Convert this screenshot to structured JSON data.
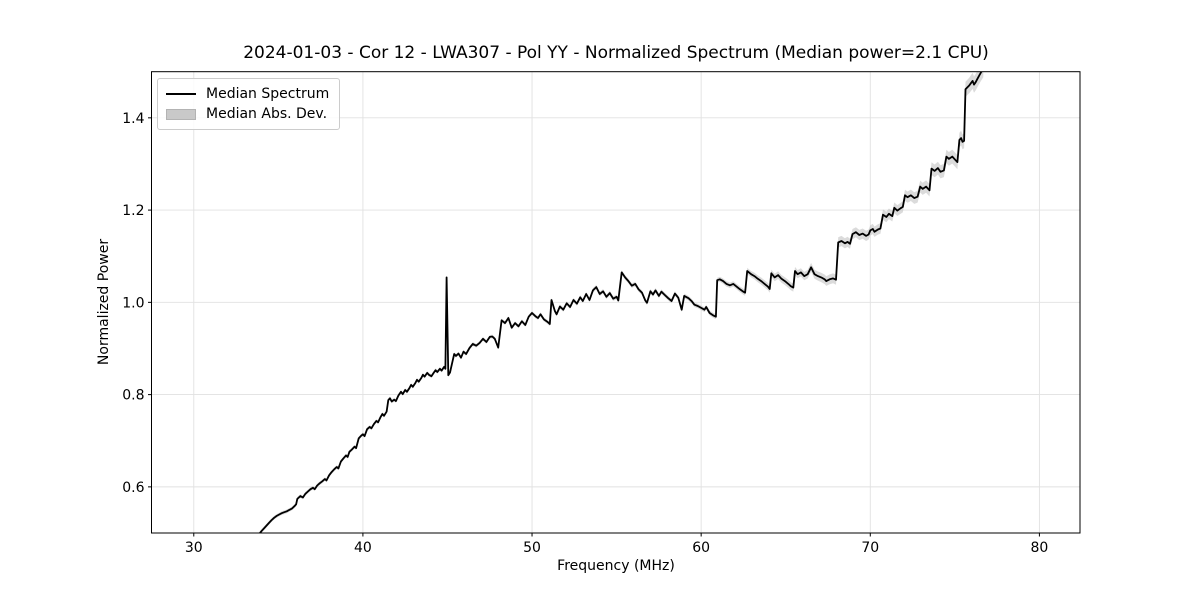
{
  "chart_data": {
    "type": "line",
    "title": "2024-01-03 - Cor 12 - LWA307 - Pol YY - Normalized Spectrum (Median power=2.1 CPU)",
    "xlabel": "Frequency (MHz)",
    "ylabel": "Normalized Power",
    "xlim": [
      27.5,
      82.4
    ],
    "ylim": [
      0.5,
      1.5
    ],
    "xticks": [
      30,
      40,
      50,
      60,
      70,
      80
    ],
    "yticks": [
      0.6,
      0.8,
      1.0,
      1.2,
      1.4
    ],
    "xtick_labels": [
      "30",
      "40",
      "50",
      "60",
      "70",
      "80"
    ],
    "ytick_labels": [
      "0.6",
      "0.8",
      "1.0",
      "1.2",
      "1.4"
    ],
    "grid": true,
    "legend": {
      "position": "upper-left",
      "entries": [
        {
          "label": "Median Spectrum",
          "type": "line",
          "color": "#000000"
        },
        {
          "label": "Median Abs. Dev.",
          "type": "patch",
          "color": "#c9c9c9"
        }
      ]
    },
    "colors": {
      "line": "#000000",
      "band": "#bdbdbd",
      "grid": "#e1e1e1",
      "spine": "#000000",
      "background": "#ffffff"
    },
    "series": [
      {
        "name": "Median Spectrum",
        "type": "line",
        "color": "#000000",
        "points": [
          [
            33.85,
            0.497
          ],
          [
            34.0,
            0.504
          ],
          [
            34.15,
            0.51
          ],
          [
            34.3,
            0.516
          ],
          [
            34.45,
            0.522
          ],
          [
            34.6,
            0.528
          ],
          [
            34.75,
            0.533
          ],
          [
            34.9,
            0.537
          ],
          [
            35.05,
            0.54
          ],
          [
            35.2,
            0.543
          ],
          [
            35.35,
            0.545
          ],
          [
            35.5,
            0.547
          ],
          [
            35.65,
            0.55
          ],
          [
            35.8,
            0.553
          ],
          [
            35.95,
            0.558
          ],
          [
            36.05,
            0.562
          ],
          [
            36.12,
            0.574
          ],
          [
            36.3,
            0.58
          ],
          [
            36.45,
            0.577
          ],
          [
            36.6,
            0.585
          ],
          [
            36.75,
            0.59
          ],
          [
            36.9,
            0.595
          ],
          [
            37.05,
            0.598
          ],
          [
            37.15,
            0.595
          ],
          [
            37.3,
            0.603
          ],
          [
            37.45,
            0.608
          ],
          [
            37.6,
            0.612
          ],
          [
            37.75,
            0.617
          ],
          [
            37.85,
            0.614
          ],
          [
            38.0,
            0.625
          ],
          [
            38.15,
            0.632
          ],
          [
            38.3,
            0.638
          ],
          [
            38.45,
            0.643
          ],
          [
            38.55,
            0.64
          ],
          [
            38.7,
            0.655
          ],
          [
            38.85,
            0.662
          ],
          [
            39.0,
            0.668
          ],
          [
            39.1,
            0.665
          ],
          [
            39.2,
            0.676
          ],
          [
            39.35,
            0.681
          ],
          [
            39.5,
            0.687
          ],
          [
            39.6,
            0.684
          ],
          [
            39.75,
            0.705
          ],
          [
            39.9,
            0.711
          ],
          [
            40.0,
            0.714
          ],
          [
            40.1,
            0.71
          ],
          [
            40.25,
            0.725
          ],
          [
            40.4,
            0.73
          ],
          [
            40.5,
            0.727
          ],
          [
            40.65,
            0.736
          ],
          [
            40.8,
            0.743
          ],
          [
            40.9,
            0.74
          ],
          [
            41.05,
            0.752
          ],
          [
            41.15,
            0.758
          ],
          [
            41.25,
            0.754
          ],
          [
            41.4,
            0.763
          ],
          [
            41.5,
            0.788
          ],
          [
            41.6,
            0.792
          ],
          [
            41.7,
            0.785
          ],
          [
            41.85,
            0.789
          ],
          [
            41.95,
            0.786
          ],
          [
            42.1,
            0.798
          ],
          [
            42.25,
            0.806
          ],
          [
            42.35,
            0.801
          ],
          [
            42.5,
            0.81
          ],
          [
            42.6,
            0.806
          ],
          [
            42.75,
            0.814
          ],
          [
            42.85,
            0.821
          ],
          [
            42.95,
            0.817
          ],
          [
            43.1,
            0.825
          ],
          [
            43.2,
            0.832
          ],
          [
            43.3,
            0.828
          ],
          [
            43.45,
            0.836
          ],
          [
            43.55,
            0.843
          ],
          [
            43.65,
            0.839
          ],
          [
            43.8,
            0.847
          ],
          [
            43.9,
            0.843
          ],
          [
            44.05,
            0.84
          ],
          [
            44.2,
            0.848
          ],
          [
            44.3,
            0.853
          ],
          [
            44.4,
            0.849
          ],
          [
            44.55,
            0.856
          ],
          [
            44.65,
            0.852
          ],
          [
            44.8,
            0.86
          ],
          [
            44.88,
            0.856
          ],
          [
            44.95,
            1.054
          ],
          [
            45.05,
            0.842
          ],
          [
            45.15,
            0.848
          ],
          [
            45.3,
            0.872
          ],
          [
            45.4,
            0.888
          ],
          [
            45.5,
            0.884
          ],
          [
            45.65,
            0.889
          ],
          [
            45.8,
            0.88
          ],
          [
            45.95,
            0.893
          ],
          [
            46.1,
            0.888
          ],
          [
            46.3,
            0.901
          ],
          [
            46.5,
            0.91
          ],
          [
            46.7,
            0.906
          ],
          [
            46.9,
            0.912
          ],
          [
            47.1,
            0.921
          ],
          [
            47.3,
            0.914
          ],
          [
            47.5,
            0.925
          ],
          [
            47.65,
            0.926
          ],
          [
            47.8,
            0.921
          ],
          [
            48.0,
            0.902
          ],
          [
            48.2,
            0.961
          ],
          [
            48.4,
            0.955
          ],
          [
            48.6,
            0.966
          ],
          [
            48.8,
            0.945
          ],
          [
            49.0,
            0.955
          ],
          [
            49.2,
            0.948
          ],
          [
            49.4,
            0.959
          ],
          [
            49.6,
            0.951
          ],
          [
            49.8,
            0.969
          ],
          [
            50.0,
            0.977
          ],
          [
            50.2,
            0.97
          ],
          [
            50.35,
            0.966
          ],
          [
            50.5,
            0.974
          ],
          [
            50.7,
            0.963
          ],
          [
            50.9,
            0.958
          ],
          [
            51.05,
            0.953
          ],
          [
            51.15,
            1.005
          ],
          [
            51.35,
            0.981
          ],
          [
            51.45,
            0.974
          ],
          [
            51.65,
            0.991
          ],
          [
            51.85,
            0.984
          ],
          [
            52.05,
            0.998
          ],
          [
            52.25,
            0.99
          ],
          [
            52.45,
            1.005
          ],
          [
            52.65,
            0.997
          ],
          [
            52.85,
            1.011
          ],
          [
            53.0,
            1.003
          ],
          [
            53.2,
            1.018
          ],
          [
            53.4,
            1.005
          ],
          [
            53.6,
            1.026
          ],
          [
            53.8,
            1.033
          ],
          [
            54.0,
            1.018
          ],
          [
            54.2,
            1.024
          ],
          [
            54.4,
            1.012
          ],
          [
            54.6,
            1.02
          ],
          [
            54.8,
            1.008
          ],
          [
            55.0,
            1.012
          ],
          [
            55.1,
            1.004
          ],
          [
            55.3,
            1.065
          ],
          [
            55.5,
            1.054
          ],
          [
            55.7,
            1.046
          ],
          [
            55.9,
            1.036
          ],
          [
            56.1,
            1.04
          ],
          [
            56.3,
            1.028
          ],
          [
            56.5,
            1.021
          ],
          [
            56.7,
            1.004
          ],
          [
            56.8,
            0.999
          ],
          [
            57.0,
            1.024
          ],
          [
            57.15,
            1.017
          ],
          [
            57.3,
            1.026
          ],
          [
            57.5,
            1.014
          ],
          [
            57.65,
            1.023
          ],
          [
            57.85,
            1.016
          ],
          [
            58.05,
            1.009
          ],
          [
            58.25,
            1.003
          ],
          [
            58.45,
            1.019
          ],
          [
            58.65,
            1.01
          ],
          [
            58.85,
            0.984
          ],
          [
            59.0,
            1.014
          ],
          [
            59.25,
            1.009
          ],
          [
            59.45,
            1.002
          ],
          [
            59.6,
            0.995
          ],
          [
            59.8,
            0.992
          ],
          [
            60.0,
            0.988
          ],
          [
            60.2,
            0.984
          ],
          [
            60.3,
            0.99
          ],
          [
            60.5,
            0.977
          ],
          [
            60.7,
            0.972
          ],
          [
            60.87,
            0.969
          ],
          [
            60.95,
            1.048
          ],
          [
            61.1,
            1.05
          ],
          [
            61.3,
            1.046
          ],
          [
            61.5,
            1.04
          ],
          [
            61.7,
            1.037
          ],
          [
            61.9,
            1.04
          ],
          [
            62.1,
            1.034
          ],
          [
            62.3,
            1.028
          ],
          [
            62.5,
            1.023
          ],
          [
            62.6,
            1.021
          ],
          [
            62.72,
            1.068
          ],
          [
            62.95,
            1.061
          ],
          [
            63.15,
            1.057
          ],
          [
            63.35,
            1.051
          ],
          [
            63.55,
            1.046
          ],
          [
            63.75,
            1.04
          ],
          [
            63.95,
            1.034
          ],
          [
            64.05,
            1.029
          ],
          [
            64.15,
            1.063
          ],
          [
            64.35,
            1.054
          ],
          [
            64.55,
            1.059
          ],
          [
            64.75,
            1.051
          ],
          [
            64.95,
            1.046
          ],
          [
            65.15,
            1.04
          ],
          [
            65.3,
            1.035
          ],
          [
            65.45,
            1.032
          ],
          [
            65.55,
            1.068
          ],
          [
            65.7,
            1.061
          ],
          [
            65.9,
            1.065
          ],
          [
            66.1,
            1.057
          ],
          [
            66.3,
            1.061
          ],
          [
            66.5,
            1.076
          ],
          [
            66.7,
            1.061
          ],
          [
            66.9,
            1.057
          ],
          [
            67.1,
            1.054
          ],
          [
            67.3,
            1.05
          ],
          [
            67.4,
            1.046
          ],
          [
            67.6,
            1.05
          ],
          [
            67.8,
            1.052
          ],
          [
            67.97,
            1.049
          ],
          [
            68.1,
            1.13
          ],
          [
            68.3,
            1.133
          ],
          [
            68.5,
            1.128
          ],
          [
            68.65,
            1.131
          ],
          [
            68.8,
            1.127
          ],
          [
            68.95,
            1.148
          ],
          [
            69.15,
            1.152
          ],
          [
            69.35,
            1.146
          ],
          [
            69.55,
            1.149
          ],
          [
            69.75,
            1.144
          ],
          [
            69.9,
            1.147
          ],
          [
            70.0,
            1.156
          ],
          [
            70.15,
            1.159
          ],
          [
            70.25,
            1.153
          ],
          [
            70.45,
            1.158
          ],
          [
            70.6,
            1.16
          ],
          [
            70.75,
            1.19
          ],
          [
            70.95,
            1.185
          ],
          [
            71.1,
            1.192
          ],
          [
            71.3,
            1.187
          ],
          [
            71.42,
            1.205
          ],
          [
            71.6,
            1.199
          ],
          [
            71.8,
            1.204
          ],
          [
            71.92,
            1.207
          ],
          [
            72.05,
            1.232
          ],
          [
            72.2,
            1.228
          ],
          [
            72.4,
            1.232
          ],
          [
            72.6,
            1.226
          ],
          [
            72.8,
            1.229
          ],
          [
            72.95,
            1.251
          ],
          [
            73.1,
            1.246
          ],
          [
            73.3,
            1.251
          ],
          [
            73.5,
            1.243
          ],
          [
            73.62,
            1.29
          ],
          [
            73.8,
            1.285
          ],
          [
            74.0,
            1.291
          ],
          [
            74.15,
            1.283
          ],
          [
            74.35,
            1.286
          ],
          [
            74.5,
            1.316
          ],
          [
            74.65,
            1.311
          ],
          [
            74.85,
            1.316
          ],
          [
            75.05,
            1.308
          ],
          [
            75.15,
            1.304
          ],
          [
            75.27,
            1.352
          ],
          [
            75.37,
            1.356
          ],
          [
            75.45,
            1.348
          ],
          [
            75.55,
            1.35
          ],
          [
            75.63,
            1.462
          ],
          [
            75.85,
            1.47
          ],
          [
            75.95,
            1.475
          ],
          [
            76.05,
            1.48
          ],
          [
            76.13,
            1.472
          ],
          [
            76.23,
            1.477
          ],
          [
            76.33,
            1.484
          ],
          [
            76.43,
            1.491
          ],
          [
            76.55,
            1.499
          ],
          [
            76.68,
            1.507
          ]
        ]
      },
      {
        "name": "Median Abs. Dev.",
        "type": "band",
        "color": "#bdbdbd",
        "opacity": 0.55,
        "half_width_points": [
          [
            33.9,
            0.004
          ],
          [
            48.0,
            0.004
          ],
          [
            55.0,
            0.005
          ],
          [
            60.0,
            0.005
          ],
          [
            62.0,
            0.006
          ],
          [
            64.0,
            0.008
          ],
          [
            66.0,
            0.009
          ],
          [
            68.0,
            0.011
          ],
          [
            70.0,
            0.011
          ],
          [
            72.0,
            0.012
          ],
          [
            74.0,
            0.014
          ],
          [
            75.5,
            0.016
          ],
          [
            76.7,
            0.019
          ]
        ]
      }
    ]
  }
}
